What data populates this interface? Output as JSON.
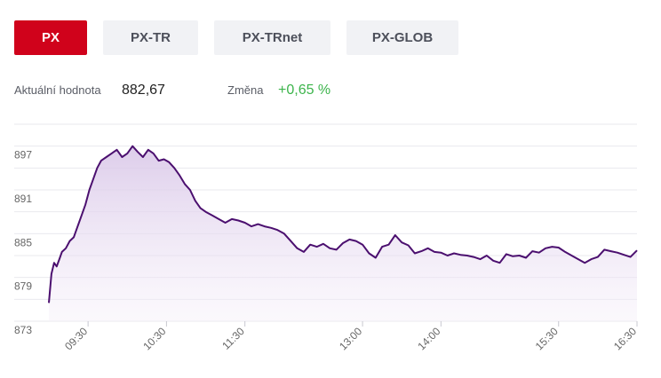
{
  "tabs": [
    {
      "label": "PX",
      "active": true
    },
    {
      "label": "PX-TR",
      "active": false
    },
    {
      "label": "PX-TRnet",
      "active": false
    },
    {
      "label": "PX-GLOB",
      "active": false
    }
  ],
  "stats": {
    "value_label": "Aktuální hodnota",
    "value": "882,67",
    "change_label": "Změna",
    "change": "+0,65 %"
  },
  "colors": {
    "accent": "#d0021b",
    "line": "#4b0f6f",
    "positive": "#3cb44b"
  },
  "chart_data": {
    "type": "area",
    "ylim": [
      873,
      900
    ],
    "yticks": [
      873,
      879,
      885,
      891,
      897
    ],
    "xlim": [
      "09:00",
      "16:30"
    ],
    "xticks": [
      "09:30",
      "10:30",
      "11:30",
      "13:00",
      "14:00",
      "15:30",
      "16:30"
    ],
    "series": [
      {
        "x": [
          "09:00",
          "09:02",
          "09:04",
          "09:06",
          "09:08",
          "09:10",
          "09:13",
          "09:16",
          "09:19",
          "09:22",
          "09:25",
          "09:28",
          "09:31",
          "09:34",
          "09:37",
          "09:40",
          "09:44",
          "09:48",
          "09:52",
          "09:56",
          "10:00",
          "10:04",
          "10:08",
          "10:12",
          "10:16",
          "10:20",
          "10:24",
          "10:28",
          "10:32",
          "10:36",
          "10:40",
          "10:44",
          "10:48",
          "10:52",
          "10:56",
          "11:00",
          "11:05",
          "11:10",
          "11:15",
          "11:20",
          "11:25",
          "11:30",
          "11:35",
          "11:40",
          "11:45",
          "11:50",
          "11:55",
          "12:00",
          "12:05",
          "12:10",
          "12:15",
          "12:20",
          "12:25",
          "12:30",
          "12:35",
          "12:40",
          "12:45",
          "12:50",
          "12:55",
          "13:00",
          "13:05",
          "13:10",
          "13:15",
          "13:20",
          "13:25",
          "13:30",
          "13:35",
          "13:40",
          "13:45",
          "13:50",
          "13:55",
          "14:00",
          "14:05",
          "14:10",
          "14:15",
          "14:20",
          "14:25",
          "14:30",
          "14:35",
          "14:40",
          "14:45",
          "14:50",
          "14:55",
          "15:00",
          "15:05",
          "15:10",
          "15:15",
          "15:20",
          "15:25",
          "15:30",
          "15:35",
          "15:40",
          "15:45",
          "15:50",
          "15:55",
          "16:00",
          "16:05",
          "16:10",
          "16:15",
          "16:20",
          "16:25",
          "16:30"
        ],
        "y": [
          875.5,
          879.5,
          881.0,
          880.5,
          881.5,
          882.5,
          883.0,
          884.0,
          884.5,
          886.0,
          887.5,
          889.0,
          891.0,
          892.5,
          894.0,
          895.0,
          895.5,
          896.0,
          896.5,
          895.5,
          896.0,
          897.0,
          896.2,
          895.5,
          896.5,
          896.0,
          895.0,
          895.2,
          894.8,
          894.0,
          893.0,
          891.8,
          891.0,
          889.5,
          888.5,
          888.0,
          887.5,
          887.0,
          886.5,
          887.0,
          886.8,
          886.5,
          886.0,
          886.3,
          886.0,
          885.8,
          885.5,
          885.0,
          884.0,
          883.0,
          882.5,
          883.5,
          883.2,
          883.6,
          883.0,
          882.8,
          883.7,
          884.2,
          884.0,
          883.5,
          882.3,
          881.7,
          883.2,
          883.5,
          884.8,
          883.8,
          883.4,
          882.3,
          882.6,
          883.0,
          882.5,
          882.4,
          882.0,
          882.3,
          882.1,
          882.0,
          881.8,
          881.5,
          882.0,
          881.3,
          881.0,
          882.2,
          881.9,
          882.0,
          881.7,
          882.6,
          882.4,
          883.0,
          883.2,
          883.1,
          882.5,
          882.0,
          881.5,
          881.0,
          881.5,
          881.8,
          882.8,
          882.6,
          882.4,
          882.1,
          881.8,
          882.7
        ]
      }
    ]
  }
}
